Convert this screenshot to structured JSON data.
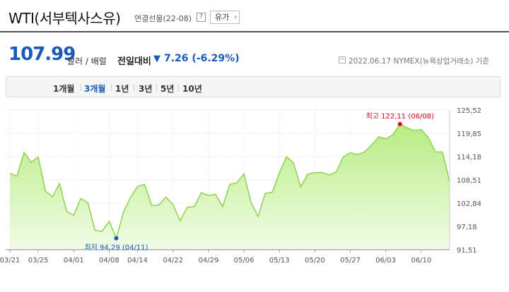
{
  "header": {
    "title": "WTI(서부텍사스유)",
    "subtitle": "연결선물(22-08)",
    "help_icon": "help-icon",
    "help_label": "?",
    "related_label": "유가",
    "related_icon": "chevron-right-icon",
    "related_chevron": "›"
  },
  "quote": {
    "price": "107.99",
    "unit": "달러 / 배럴",
    "change_label": "전일대비",
    "change_arrow": "▼",
    "change_value": "7.26 (-6.29%)",
    "as_of_icon": "calendar-icon",
    "as_of": "2022.06.17  NYMEX(뉴욕상업거래소) 기준",
    "color_down": "#1a5ab8"
  },
  "tabs": [
    {
      "label": "1개월",
      "active": false
    },
    {
      "label": "3개월",
      "active": true
    },
    {
      "label": "1년",
      "active": false
    },
    {
      "label": "3년",
      "active": false
    },
    {
      "label": "5년",
      "active": false
    },
    {
      "label": "10년",
      "active": false
    }
  ],
  "chart_data": {
    "type": "area",
    "title": "",
    "xlabel": "",
    "ylabel": "",
    "y_ticks": [
      "125,52",
      "119,85",
      "114,18",
      "108,51",
      "102,84",
      "97,18",
      "91,51"
    ],
    "y_tick_values": [
      125.52,
      119.85,
      114.18,
      108.51,
      102.84,
      97.18,
      91.51
    ],
    "x_ticks": [
      "03/21",
      "03/25",
      "04/01",
      "04/08",
      "04/14",
      "04/22",
      "04/29",
      "05/06",
      "05/13",
      "05/20",
      "05/27",
      "06/03",
      "06/10"
    ],
    "x_tick_index": [
      0,
      4,
      9,
      14,
      18,
      23,
      28,
      33,
      38,
      43,
      48,
      53,
      58
    ],
    "ylim": [
      91.51,
      125.52
    ],
    "grid": true,
    "fill_color": "#d6f5b0",
    "line_color": "#8fd14f",
    "series": [
      {
        "values": [
          110.1,
          109.4,
          115.2,
          112.8,
          114.1,
          105.8,
          104.4,
          107.6,
          100.8,
          99.9,
          104.0,
          102.9,
          96.2,
          96.0,
          98.4,
          94.29,
          100.6,
          104.2,
          106.9,
          107.4,
          102.3,
          102.4,
          104.3,
          102.5,
          98.5,
          101.8,
          102.0,
          105.4,
          104.7,
          105.0,
          102.0,
          107.4,
          107.8,
          110.0,
          103.0,
          99.6,
          105.2,
          105.5,
          110.2,
          114.2,
          112.6,
          106.8,
          109.9,
          110.3,
          110.3,
          109.7,
          110.4,
          114.1,
          115.1,
          114.7,
          115.3,
          117.0,
          119.0,
          118.5,
          119.5,
          122.11,
          121.2,
          120.5,
          120.8,
          118.8,
          115.3,
          115.3,
          107.99
        ]
      }
    ],
    "annotations": {
      "high": {
        "label": "최고 122,11 (06/08)",
        "index": 55,
        "value": 122.11,
        "color": "#e0001a"
      },
      "low": {
        "label": "최저 94,29 (04/11)",
        "index": 15,
        "value": 94.29,
        "color": "#1a5ab8"
      }
    }
  }
}
